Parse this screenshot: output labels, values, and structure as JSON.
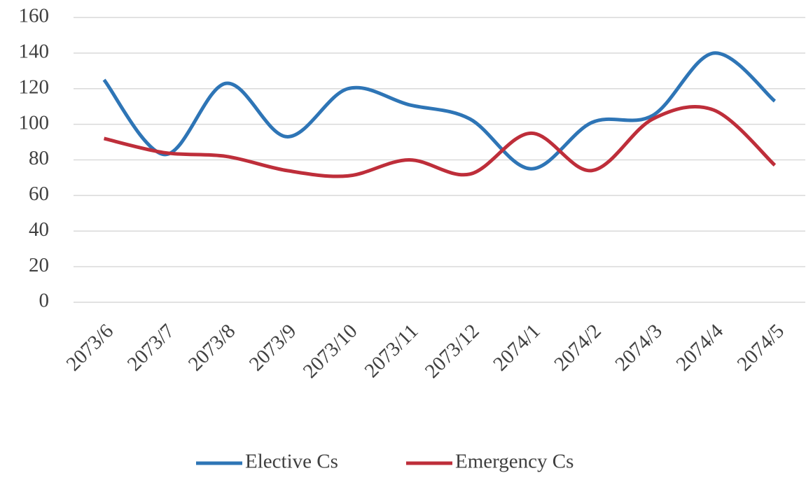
{
  "chart_data": {
    "type": "line",
    "categories": [
      "2073/6",
      "2073/7",
      "2073/8",
      "2073/9",
      "2073/10",
      "2073/11",
      "2073/12",
      "2074/1",
      "2074/2",
      "2074/3",
      "2074/4",
      "2074/5"
    ],
    "series": [
      {
        "name": "Elective Cs",
        "color": "#2e75b6",
        "values": [
          125,
          83,
          123,
          93,
          120,
          111,
          103,
          75,
          101,
          105,
          140,
          113
        ]
      },
      {
        "name": "Emergency Cs",
        "color": "#be2e3a",
        "values": [
          92,
          84,
          82,
          74,
          71,
          80,
          72,
          95,
          74,
          103,
          108,
          77
        ]
      }
    ],
    "ylim": [
      0,
      160
    ],
    "yticks": [
      0,
      20,
      40,
      60,
      80,
      100,
      120,
      140,
      160
    ],
    "grid": true,
    "smooth": true,
    "legend": "bottom"
  }
}
